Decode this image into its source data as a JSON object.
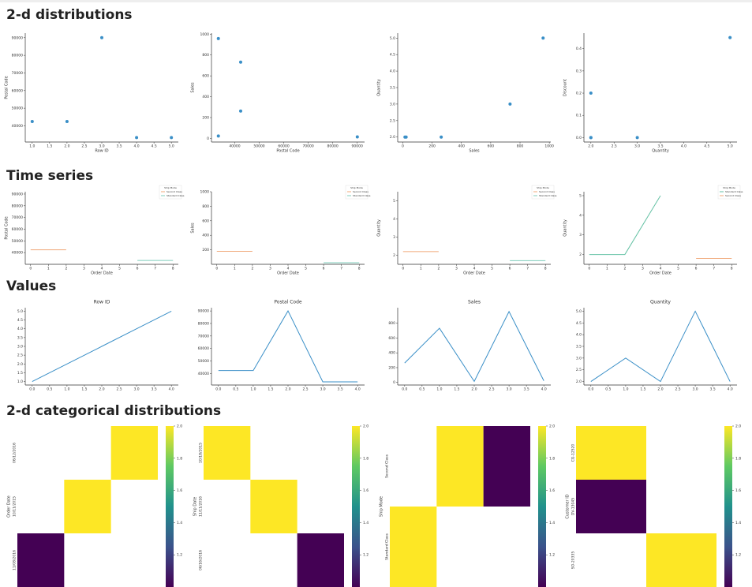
{
  "sections": [
    {
      "title": "2-d distributions",
      "chart_data": [
        {
          "type": "scatter",
          "xlabel": "Row ID",
          "ylabel": "Postal Code",
          "color": "#3a8fc7",
          "x": [
            1,
            2,
            3,
            4,
            5
          ],
          "values": [
            42420,
            42420,
            90036,
            33311,
            33311
          ],
          "xlim": [
            0.8,
            5.2
          ],
          "ylim": [
            30800,
            92600
          ],
          "xticks": [
            {
              "value": 1,
              "label": "1.0"
            },
            1.5,
            {
              "value": 2,
              "label": "2.0"
            },
            2.5,
            {
              "value": 3,
              "label": "3.0"
            },
            3.5,
            {
              "value": 4,
              "label": "4.0"
            },
            4.5,
            {
              "value": 5,
              "label": "5.0"
            }
          ],
          "yticks": [
            40000,
            50000,
            60000,
            70000,
            80000,
            90000
          ]
        },
        {
          "type": "scatter",
          "xlabel": "Postal Code",
          "ylabel": "Sales",
          "color": "#3a8fc7",
          "x": [
            42420,
            42420,
            90036,
            33311,
            33311
          ],
          "values": [
            261.96,
            731.94,
            14.62,
            957.58,
            22.37
          ],
          "xlim": [
            30500,
            93000
          ],
          "ylim": [
            -35,
            1010
          ],
          "xticks": [
            40000,
            50000,
            60000,
            70000,
            80000,
            90000
          ],
          "yticks": [
            0,
            200,
            400,
            600,
            800,
            1000
          ]
        },
        {
          "type": "scatter",
          "xlabel": "Sales",
          "ylabel": "Quantity",
          "color": "#3a8fc7",
          "x": [
            261.96,
            731.94,
            14.62,
            957.58,
            22.37
          ],
          "values": [
            2,
            3,
            2,
            5,
            2
          ],
          "xlim": [
            -35,
            1010
          ],
          "ylim": [
            1.85,
            5.15
          ],
          "xticks": [
            0,
            200,
            400,
            600,
            800,
            1000
          ],
          "yticks": [
            {
              "value": 2,
              "label": "2.0"
            },
            2.5,
            {
              "value": 3,
              "label": "3.0"
            },
            3.5,
            {
              "value": 4,
              "label": "4.0"
            },
            4.5,
            {
              "value": 5,
              "label": "5.0"
            }
          ]
        },
        {
          "type": "scatter",
          "xlabel": "Quantity",
          "ylabel": "Discount",
          "color": "#3a8fc7",
          "x": [
            2,
            3,
            2,
            5,
            2
          ],
          "values": [
            0,
            0,
            0,
            0.45,
            0.2
          ],
          "xlim": [
            1.85,
            5.15
          ],
          "ylim": [
            -0.02,
            0.47
          ],
          "xticks": [
            {
              "value": 2,
              "label": "2.0"
            },
            2.5,
            {
              "value": 3,
              "label": "3.0"
            },
            3.5,
            {
              "value": 4,
              "label": "4.0"
            },
            4.5,
            {
              "value": 5,
              "label": "5.0"
            }
          ],
          "yticks": [
            {
              "value": 0,
              "label": "0.0"
            },
            0.1,
            0.2,
            0.3,
            0.4
          ]
        }
      ]
    },
    {
      "title": "Time series",
      "chart_data": [
        {
          "type": "line",
          "xlabel": "Order Date",
          "ylabel": "Postal Code",
          "legend_title": "Ship Mode",
          "x": [
            0,
            1,
            2,
            3,
            4,
            5,
            6,
            7,
            8
          ],
          "xlim": [
            -0.3,
            8.3
          ],
          "ylim": [
            30000,
            92000
          ],
          "xticks": [
            0,
            1,
            2,
            3,
            4,
            5,
            6,
            7,
            8
          ],
          "yticks": [
            40000,
            50000,
            60000,
            70000,
            80000,
            90000
          ],
          "series": [
            {
              "name": "Second Class",
              "color": "#f0a878",
              "values": [
                42420,
                42420,
                42420,
                null,
                null,
                null,
                null,
                null,
                null
              ]
            },
            {
              "name": "Standard Class",
              "color": "#7fcdbb",
              "values": [
                null,
                null,
                null,
                null,
                null,
                null,
                33311,
                33311,
                33311
              ]
            }
          ]
        },
        {
          "type": "line",
          "xlabel": "Order Date",
          "ylabel": "Sales",
          "legend_title": "Ship Mode",
          "x": [
            0,
            1,
            2,
            3,
            4,
            5,
            6,
            7,
            8
          ],
          "xlim": [
            -0.3,
            8.3
          ],
          "ylim": [
            0,
            1000
          ],
          "xticks": [
            0,
            1,
            2,
            3,
            4,
            5,
            6,
            7,
            8
          ],
          "yticks": [
            200,
            400,
            600,
            800,
            1000
          ],
          "series": [
            {
              "name": "Second Class",
              "color": "#f0a878",
              "values": [
                180,
                180,
                180,
                null,
                null,
                null,
                null,
                null,
                null
              ]
            },
            {
              "name": "Standard Class",
              "color": "#7fcdbb",
              "values": [
                null,
                null,
                null,
                null,
                null,
                null,
                22.37,
                22.37,
                22.37
              ]
            }
          ]
        },
        {
          "type": "line",
          "xlabel": "Order Date",
          "ylabel": "Quantity",
          "legend_title": "Ship Mode",
          "x": [
            0,
            1,
            2,
            3,
            4,
            5,
            6,
            7,
            8
          ],
          "xlim": [
            -0.3,
            8.3
          ],
          "ylim": [
            1.5,
            5.5
          ],
          "xticks": [
            0,
            1,
            2,
            3,
            4,
            5,
            6,
            7,
            8
          ],
          "yticks": [
            2,
            3,
            4,
            5
          ],
          "series": [
            {
              "name": "Second Class",
              "color": "#f0a878",
              "values": [
                2.2,
                2.2,
                2.2,
                null,
                null,
                null,
                null,
                null,
                null
              ]
            },
            {
              "name": "Standard Class",
              "color": "#7fcdbb",
              "values": [
                null,
                null,
                null,
                null,
                null,
                null,
                1.7,
                1.7,
                1.7
              ]
            }
          ]
        },
        {
          "type": "line",
          "xlabel": "Order Date",
          "ylabel": "Quantity",
          "legend_title": "Ship Mode",
          "x": [
            0,
            2,
            4,
            6,
            8
          ],
          "xlim": [
            -0.3,
            8.3
          ],
          "ylim": [
            1.5,
            5.2
          ],
          "xticks": [
            0,
            1,
            2,
            3,
            4,
            5,
            6,
            7,
            8
          ],
          "yticks": [
            2,
            3,
            4,
            5
          ],
          "series": [
            {
              "name": "Standard Class",
              "color": "#66c2a5",
              "values": [
                2,
                2,
                5,
                null,
                null
              ]
            },
            {
              "name": "Second Class",
              "color": "#f0a878",
              "values": [
                null,
                null,
                null,
                1.8,
                1.8
              ]
            }
          ]
        }
      ]
    },
    {
      "title": "Values",
      "chart_data": [
        {
          "type": "line",
          "title": "Row ID",
          "color": "#3a8fc7",
          "x": [
            0,
            1,
            2,
            3,
            4
          ],
          "values": [
            1,
            2,
            3,
            4,
            5
          ],
          "xlim": [
            -0.2,
            4.2
          ],
          "ylim": [
            0.8,
            5.2
          ],
          "xticks": [
            {
              "value": 0,
              "label": "0.0"
            },
            0.5,
            {
              "value": 1,
              "label": "1.0"
            },
            1.5,
            {
              "value": 2,
              "label": "2.0"
            },
            2.5,
            {
              "value": 3,
              "label": "3.0"
            },
            3.5,
            {
              "value": 4,
              "label": "4.0"
            }
          ],
          "yticks": [
            {
              "value": 1,
              "label": "1.0"
            },
            1.5,
            {
              "value": 2,
              "label": "2.0"
            },
            2.5,
            {
              "value": 3,
              "label": "3.0"
            },
            3.5,
            {
              "value": 4,
              "label": "4.0"
            },
            4.5,
            {
              "value": 5,
              "label": "5.0"
            }
          ]
        },
        {
          "type": "line",
          "title": "Postal Code",
          "color": "#3a8fc7",
          "x": [
            0,
            1,
            2,
            3,
            4
          ],
          "values": [
            42420,
            42420,
            90036,
            33311,
            33311
          ],
          "xlim": [
            -0.2,
            4.2
          ],
          "ylim": [
            30800,
            92600
          ],
          "xticks": [
            {
              "value": 0,
              "label": "0.0"
            },
            0.5,
            {
              "value": 1,
              "label": "1.0"
            },
            1.5,
            {
              "value": 2,
              "label": "2.0"
            },
            2.5,
            {
              "value": 3,
              "label": "3.0"
            },
            3.5,
            {
              "value": 4,
              "label": "4.0"
            }
          ],
          "yticks": [
            40000,
            50000,
            60000,
            70000,
            80000,
            90000
          ]
        },
        {
          "type": "line",
          "title": "Sales",
          "color": "#3a8fc7",
          "x": [
            0,
            1,
            2,
            3,
            4
          ],
          "values": [
            261.96,
            731.94,
            14.62,
            957.58,
            22.37
          ],
          "xlim": [
            -0.2,
            4.2
          ],
          "ylim": [
            -35,
            1010
          ],
          "xticks": [
            {
              "value": 0,
              "label": "0.0"
            },
            0.5,
            {
              "value": 1,
              "label": "1.0"
            },
            1.5,
            {
              "value": 2,
              "label": "2.0"
            },
            2.5,
            {
              "value": 3,
              "label": "3.0"
            },
            3.5,
            {
              "value": 4,
              "label": "4.0"
            }
          ],
          "yticks": [
            0,
            200,
            400,
            600,
            800
          ]
        },
        {
          "type": "line",
          "title": "Quantity",
          "color": "#3a8fc7",
          "x": [
            0,
            1,
            2,
            3,
            4
          ],
          "values": [
            2,
            3,
            2,
            5,
            2
          ],
          "xlim": [
            -0.2,
            4.2
          ],
          "ylim": [
            1.85,
            5.15
          ],
          "xticks": [
            {
              "value": 0,
              "label": "0.0"
            },
            0.5,
            {
              "value": 1,
              "label": "1.0"
            },
            1.5,
            {
              "value": 2,
              "label": "2.0"
            },
            2.5,
            {
              "value": 3,
              "label": "3.0"
            },
            3.5,
            {
              "value": 4,
              "label": "4.0"
            }
          ],
          "yticks": [
            {
              "value": 2,
              "label": "2.0"
            },
            2.5,
            {
              "value": 3,
              "label": "3.0"
            },
            3.5,
            {
              "value": 4,
              "label": "4.0"
            },
            4.5,
            {
              "value": 5,
              "label": "5.0"
            }
          ]
        }
      ]
    },
    {
      "title": "2-d categorical distributions",
      "chart_data": [
        {
          "type": "heatmap",
          "ylabel": "Order Date",
          "rows": [
            "06/12/2016",
            "10/11/2015",
            "11/08/2016"
          ],
          "values": [
            [
              null,
              null,
              2
            ],
            [
              null,
              2,
              null
            ],
            [
              1,
              null,
              null
            ]
          ],
          "clim": [
            1,
            2
          ],
          "cticks": [
            1.2,
            1.4,
            1.6,
            1.8,
            {
              "value": 2,
              "label": "2.0"
            }
          ]
        },
        {
          "type": "heatmap",
          "ylabel": "Ship Date",
          "rows": [
            "10/18/2015",
            "11/11/2016",
            "06/16/2016"
          ],
          "values": [
            [
              2,
              null,
              null
            ],
            [
              null,
              2,
              null
            ],
            [
              null,
              null,
              1
            ]
          ],
          "clim": [
            1,
            2
          ],
          "cticks": [
            1.2,
            1.4,
            1.6,
            1.8,
            {
              "value": 2,
              "label": "2.0"
            }
          ]
        },
        {
          "type": "heatmap",
          "ylabel": "Ship Mode",
          "rows": [
            "Second Class",
            "Standard Class"
          ],
          "values": [
            [
              null,
              2,
              1
            ],
            [
              2,
              null,
              null
            ]
          ],
          "clim": [
            1,
            2
          ],
          "cticks": [
            1.2,
            1.4,
            1.6,
            1.8,
            {
              "value": 2,
              "label": "2.0"
            }
          ]
        },
        {
          "type": "heatmap",
          "ylabel": "Customer ID",
          "rows": [
            "CG-12520",
            "DV-13045",
            "SO-20335"
          ],
          "values": [
            [
              2,
              null
            ],
            [
              1,
              null
            ],
            [
              null,
              2
            ]
          ],
          "clim": [
            1,
            2
          ],
          "cticks": [
            1.2,
            1.4,
            1.6,
            1.8,
            {
              "value": 2,
              "label": "2.0"
            }
          ]
        }
      ]
    }
  ]
}
